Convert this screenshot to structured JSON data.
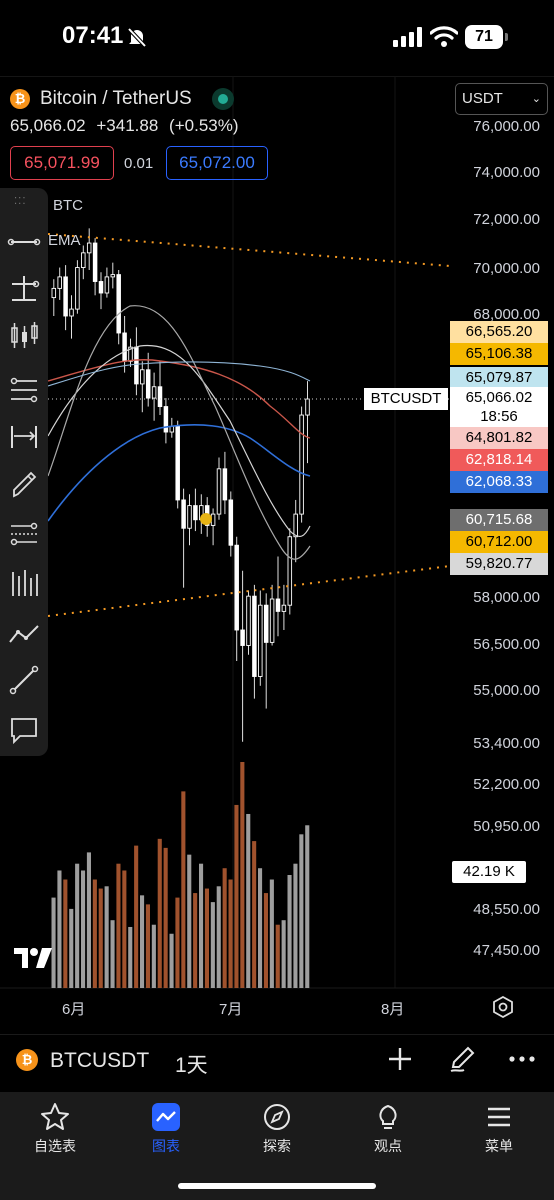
{
  "status_bar": {
    "time": "07:41",
    "battery": "71"
  },
  "header": {
    "title": "Bitcoin / TetherUS",
    "currency": "USDT",
    "last_price": "65,066.02",
    "change": "+341.88",
    "change_pct": "(+0.53%)",
    "sell_price": "65,071.99",
    "spread": "0.01",
    "buy_price": "65,072.00"
  },
  "legend": {
    "line1": "BTC",
    "line2": "EMA"
  },
  "price_axis": [
    "76,000.00",
    "74,000.00",
    "72,000.00",
    "70,000.00",
    "68,000.00",
    "58,000.00",
    "56,500.00",
    "55,000.00",
    "53,400.00",
    "52,200.00",
    "50,950.00",
    "48,550.00",
    "47,450.00"
  ],
  "price_tags": {
    "t1": "66,565.20",
    "t2": "65,106.38",
    "t3": "65,079.87",
    "last": "65,066.02",
    "countdown": "18:56",
    "t5": "64,801.82",
    "t6": "62,818.14",
    "t7": "62,068.33",
    "t8": "60,715.68",
    "t9": "60,712.00",
    "t10": "59,820.77"
  },
  "symbol_flag": "BTCUSDT",
  "volume_tag": "42.19 K",
  "time_axis": [
    "6月",
    "7月",
    "8月"
  ],
  "symbol_bar": {
    "symbol": "BTCUSDT",
    "interval": "1天"
  },
  "nav": [
    {
      "label": "自选表",
      "icon": "star-icon"
    },
    {
      "label": "图表",
      "icon": "chart-icon"
    },
    {
      "label": "探索",
      "icon": "compass-icon"
    },
    {
      "label": "观点",
      "icon": "lightbulb-icon"
    },
    {
      "label": "菜单",
      "icon": "menu-icon"
    }
  ],
  "colors": {
    "up": "#ffffff",
    "down": "#ffffff",
    "volume_up": "#9e9e9e",
    "volume_down": "#a0522d",
    "ema_red": "#d2574a",
    "ema_blue": "#2f6fd8",
    "trendline": "#f59a23",
    "accent": "#2962ff"
  },
  "chart_data": {
    "type": "candlestick",
    "interval": "1D",
    "candles": [
      [
        68800,
        69600,
        68000,
        69200
      ],
      [
        69200,
        70100,
        68700,
        69700
      ],
      [
        69700,
        70200,
        67500,
        68000
      ],
      [
        68000,
        68900,
        67200,
        68300
      ],
      [
        68300,
        70400,
        68100,
        70100
      ],
      [
        70100,
        71000,
        69600,
        70700
      ],
      [
        70700,
        71700,
        70000,
        71100
      ],
      [
        71100,
        71300,
        68900,
        69500
      ],
      [
        69500,
        69900,
        68300,
        69000
      ],
      [
        69000,
        70100,
        68800,
        69700
      ],
      [
        69700,
        70300,
        69200,
        69800
      ],
      [
        69800,
        70000,
        67000,
        67400
      ],
      [
        67400,
        68000,
        66000,
        66400
      ],
      [
        66400,
        67200,
        66200,
        66900
      ],
      [
        66900,
        67600,
        65200,
        65600
      ],
      [
        65600,
        66400,
        64600,
        66100
      ],
      [
        66100,
        66700,
        64800,
        65100
      ],
      [
        65100,
        66000,
        64300,
        65500
      ],
      [
        65500,
        66400,
        64500,
        64800
      ],
      [
        64800,
        65100,
        63500,
        63900
      ],
      [
        63900,
        64400,
        63700,
        64100
      ],
      [
        64100,
        64300,
        61200,
        61500
      ],
      [
        61500,
        61900,
        58400,
        60500
      ],
      [
        60500,
        61700,
        59900,
        61300
      ],
      [
        61300,
        61900,
        60400,
        60800
      ],
      [
        60800,
        61700,
        60300,
        61300
      ],
      [
        61300,
        61600,
        60200,
        60600
      ],
      [
        60600,
        61200,
        59900,
        61000
      ],
      [
        61000,
        63000,
        60800,
        62600
      ],
      [
        62600,
        63200,
        61000,
        61500
      ],
      [
        61500,
        61800,
        59500,
        59900
      ],
      [
        59900,
        60200,
        56000,
        57000
      ],
      [
        57000,
        59000,
        53500,
        56500
      ],
      [
        56500,
        58300,
        56200,
        58100
      ],
      [
        58100,
        58500,
        54800,
        55500
      ],
      [
        55500,
        58300,
        55200,
        57800
      ],
      [
        57800,
        58200,
        54500,
        56600
      ],
      [
        56600,
        58500,
        56500,
        58000
      ],
      [
        58000,
        59500,
        56800,
        57600
      ],
      [
        57600,
        58500,
        57000,
        57800
      ],
      [
        57800,
        60500,
        57500,
        60200
      ],
      [
        60200,
        61500,
        59300,
        61000
      ],
      [
        61000,
        64800,
        60700,
        64500
      ],
      [
        64500,
        65700,
        62800,
        65066
      ]
    ],
    "volumes": [
      0.4,
      0.52,
      0.48,
      0.35,
      0.55,
      0.52,
      0.6,
      0.48,
      0.44,
      0.45,
      0.3,
      0.55,
      0.52,
      0.27,
      0.63,
      0.41,
      0.37,
      0.28,
      0.66,
      0.62,
      0.24,
      0.4,
      0.87,
      0.59,
      0.42,
      0.55,
      0.44,
      0.38,
      0.45,
      0.53,
      0.48,
      0.81,
      1.0,
      0.77,
      0.65,
      0.53,
      0.42,
      0.48,
      0.28,
      0.3,
      0.5,
      0.55,
      0.68,
      0.72
    ]
  }
}
